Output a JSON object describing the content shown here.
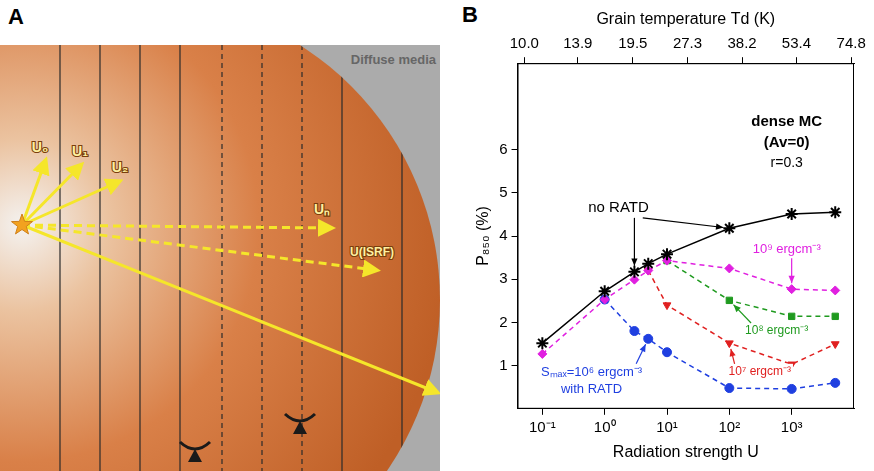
{
  "panel_a": {
    "letter": "A",
    "medium_label": "Diffuse media",
    "flux_labels": [
      "U₀",
      "U₁",
      "U₂",
      "Uₙ",
      "U(ISRF)"
    ]
  },
  "panel_b": {
    "letter": "B"
  },
  "chart_data": {
    "type": "line",
    "xlabel": "Radiation strength U",
    "x2label": "Grain temperature Td (K)",
    "ylabel": "P₈₅₀ (%)",
    "annotations": [
      "dense MC",
      "(Av=0)",
      "r=0.3",
      "with RATD"
    ],
    "log": "x",
    "grid": false,
    "x": [
      0.1,
      1,
      3,
      5,
      10,
      100,
      1000,
      5000
    ],
    "xlim": [
      0.04,
      10000
    ],
    "xticks": [
      {
        "value": 0.1,
        "label": "10⁻¹"
      },
      {
        "value": 1,
        "label": "10⁰"
      },
      {
        "value": 10,
        "label": "10¹"
      },
      {
        "value": 100,
        "label": "10²"
      },
      {
        "value": 1000,
        "label": "10³"
      }
    ],
    "x2lim": [
      9.59,
      76.1
    ],
    "x2ticks": [
      {
        "value": 10,
        "label": "10.0"
      },
      13.9,
      19.5,
      27.3,
      38.2,
      53.4,
      74.8
    ],
    "ylim": [
      0,
      8
    ],
    "yticks": [
      1,
      2,
      3,
      4,
      5,
      6
    ],
    "series": [
      {
        "name": "no RATD",
        "color": "#000000",
        "marker": "star",
        "line_style": "solid",
        "values": [
          1.52,
          2.72,
          3.17,
          3.36,
          3.58,
          4.18,
          4.51,
          4.55
        ]
      },
      {
        "name": "10⁹ ergcm⁻³",
        "color": "#e020e0",
        "marker": "diamond",
        "line_style": "dashed",
        "values": [
          1.27,
          2.53,
          2.99,
          3.2,
          3.43,
          3.25,
          2.77,
          2.74
        ]
      },
      {
        "name": "10⁸ ergcm⁻³",
        "color": "#1f9a1f",
        "marker": "square",
        "line_style": "dashed",
        "values": [
          null,
          null,
          null,
          null,
          3.43,
          2.51,
          2.14,
          2.14
        ]
      },
      {
        "name": "10⁷ ergcm⁻³",
        "color": "#e02020",
        "marker": "triangle_down",
        "line_style": "dashed",
        "values": [
          null,
          null,
          null,
          3.2,
          2.4,
          1.52,
          1.03,
          1.5
        ]
      },
      {
        "name": "Sₘₐₓ=10⁶ ergcm⁻³",
        "color": "#1f3fe0",
        "marker": "circle",
        "line_style": "dashed",
        "values": [
          null,
          2.53,
          1.8,
          1.62,
          1.31,
          0.48,
          0.46,
          0.6
        ]
      }
    ]
  }
}
